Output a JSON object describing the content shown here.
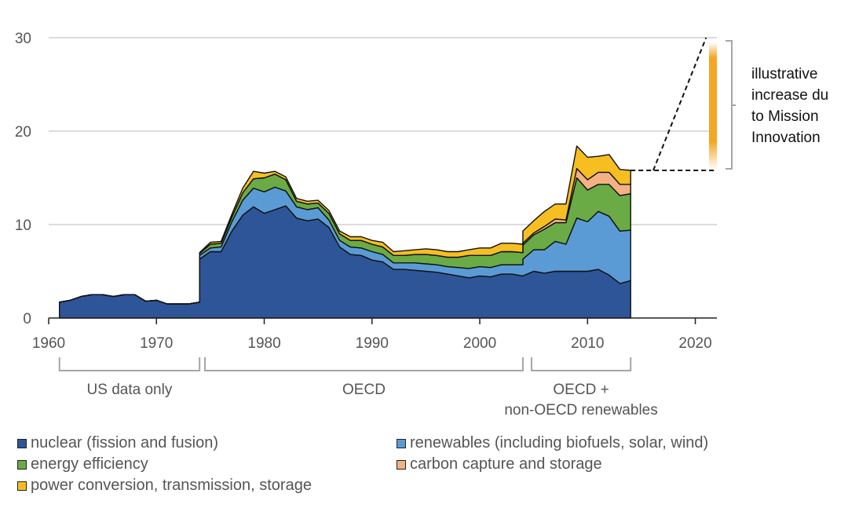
{
  "chart_data": {
    "type": "area",
    "stacked": true,
    "xlim": [
      1960,
      2022
    ],
    "ylim": [
      0,
      30
    ],
    "x_ticks": [
      1960,
      1970,
      1980,
      1990,
      2000,
      2010,
      2020
    ],
    "y_ticks": [
      0,
      10,
      20,
      30
    ],
    "grid": "horizontal",
    "x": [
      1961,
      1962,
      1963,
      1964,
      1965,
      1966,
      1967,
      1968,
      1969,
      1970,
      1971,
      1972,
      1973,
      1974,
      1974,
      1975,
      1976,
      1977,
      1978,
      1979,
      1980,
      1981,
      1982,
      1983,
      1984,
      1985,
      1986,
      1987,
      1988,
      1989,
      1990,
      1991,
      1992,
      1993,
      1994,
      1995,
      1996,
      1997,
      1998,
      1999,
      2000,
      2001,
      2002,
      2003,
      2004,
      2004,
      2005,
      2006,
      2007,
      2008,
      2009,
      2010,
      2011,
      2012,
      2013,
      2014
    ],
    "series": [
      {
        "name": "nuclear (fission and fusion)",
        "color": "#2e5597",
        "values": [
          1.7,
          1.9,
          2.3,
          2.5,
          2.5,
          2.3,
          2.5,
          2.5,
          1.8,
          1.9,
          1.5,
          1.5,
          1.5,
          1.7,
          6.3,
          7.1,
          7.1,
          9.3,
          11.0,
          11.9,
          11.2,
          11.6,
          12.0,
          10.7,
          10.4,
          10.6,
          9.7,
          7.6,
          6.8,
          6.7,
          6.2,
          6.0,
          5.2,
          5.2,
          5.1,
          5.0,
          4.9,
          4.7,
          4.5,
          4.3,
          4.5,
          4.4,
          4.7,
          4.7,
          4.5,
          4.5,
          5.0,
          4.8,
          5.0,
          5.0,
          5.0,
          5.0,
          5.2,
          4.6,
          3.7,
          4.0
        ]
      },
      {
        "name": "renewables (including biofuels, solar, wind)",
        "color": "#5b9bd5",
        "values": [
          0,
          0,
          0,
          0,
          0,
          0,
          0,
          0,
          0,
          0,
          0,
          0,
          0,
          0,
          0.4,
          0.4,
          0.5,
          1.0,
          1.6,
          2.0,
          2.3,
          2.4,
          1.6,
          1.2,
          1.2,
          1.2,
          0.8,
          0.7,
          0.8,
          0.8,
          0.9,
          0.8,
          0.7,
          0.7,
          0.8,
          0.8,
          0.8,
          0.8,
          0.9,
          1.0,
          1.0,
          1.0,
          1.0,
          1.0,
          1.2,
          1.8,
          2.3,
          2.5,
          3.2,
          2.9,
          5.7,
          5.3,
          6.2,
          6.3,
          5.6,
          5.4
        ]
      },
      {
        "name": "energy efficiency",
        "color": "#6aab46",
        "values": [
          0,
          0,
          0,
          0,
          0,
          0,
          0,
          0,
          0,
          0,
          0,
          0,
          0,
          0,
          0.2,
          0.4,
          0.4,
          0.5,
          0.8,
          1.0,
          1.5,
          1.4,
          1.2,
          0.6,
          0.6,
          0.5,
          0.7,
          0.7,
          0.7,
          0.8,
          0.8,
          0.8,
          0.8,
          0.8,
          0.9,
          1.0,
          1.0,
          1.0,
          1.1,
          1.4,
          1.2,
          1.3,
          1.4,
          1.4,
          1.3,
          1.5,
          1.6,
          2.2,
          2.0,
          2.3,
          4.3,
          3.4,
          2.9,
          3.4,
          3.8,
          3.9
        ]
      },
      {
        "name": "carbon capture and storage",
        "color": "#f4b183",
        "values": [
          0,
          0,
          0,
          0,
          0,
          0,
          0,
          0,
          0,
          0,
          0,
          0,
          0,
          0,
          0,
          0,
          0,
          0,
          0,
          0,
          0,
          0,
          0,
          0,
          0,
          0,
          0,
          0,
          0,
          0,
          0,
          0,
          0,
          0,
          0,
          0,
          0,
          0,
          0,
          0,
          0,
          0,
          0,
          0,
          0,
          0.2,
          0.2,
          0.3,
          0.4,
          0.3,
          1.0,
          1.1,
          1.3,
          1.3,
          1.2,
          1.0
        ]
      },
      {
        "name": "power conversion, transmission, storage",
        "color": "#f7be22",
        "values": [
          0,
          0,
          0,
          0,
          0,
          0,
          0,
          0,
          0,
          0,
          0,
          0,
          0,
          0,
          0.1,
          0.2,
          0.2,
          0.3,
          0.5,
          0.8,
          0.5,
          0.3,
          0.3,
          0.3,
          0.3,
          0.3,
          0.3,
          0.3,
          0.4,
          0.4,
          0.4,
          0.5,
          0.4,
          0.5,
          0.5,
          0.6,
          0.6,
          0.6,
          0.6,
          0.6,
          0.8,
          0.8,
          0.9,
          0.9,
          0.9,
          1.3,
          1.3,
          1.6,
          1.6,
          1.7,
          2.4,
          2.4,
          1.7,
          1.9,
          1.6,
          1.5
        ]
      }
    ],
    "regions": [
      {
        "label": [
          "US data only"
        ],
        "x_start": 1961,
        "x_end": 1974
      },
      {
        "label": [
          "OECD"
        ],
        "x_start": 1974.5,
        "x_end": 2004
      },
      {
        "label": [
          "OECD +",
          "non-OECD renewables"
        ],
        "x_start": 2004.8,
        "x_end": 2014
      }
    ],
    "projection": {
      "from": [
        2014,
        15.8
      ],
      "flat_to": [
        2016.1,
        15.8
      ],
      "rise_to": [
        2021,
        30
      ]
    },
    "annotation": [
      "illustrative",
      "increase du",
      "to Mission",
      "Innovation"
    ],
    "annotation_colors": [
      "#f5a623",
      "#ffffff"
    ]
  }
}
